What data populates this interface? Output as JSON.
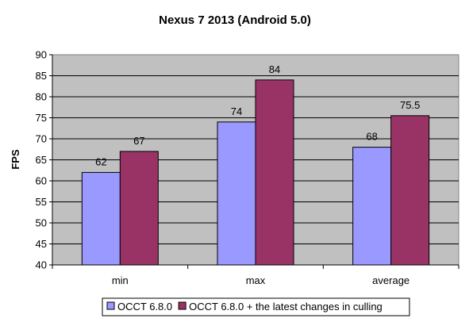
{
  "chart_data": {
    "type": "bar",
    "title": "Nexus 7 2013 (Android 5.0)",
    "xlabel": "",
    "ylabel": "FPS",
    "ylim": [
      40,
      90
    ],
    "yticks": [
      40,
      45,
      50,
      55,
      60,
      65,
      70,
      75,
      80,
      85,
      90
    ],
    "categories": [
      "min",
      "max",
      "average"
    ],
    "series": [
      {
        "name": "OCCT 6.8.0",
        "values": [
          62,
          74,
          68
        ],
        "value_labels": [
          "62",
          "74",
          "68"
        ],
        "color": "#9999ff"
      },
      {
        "name": "OCCT 6.8.0 + the latest changes in culling",
        "values": [
          67,
          84,
          75.5
        ],
        "value_labels": [
          "67",
          "84",
          "75.5"
        ],
        "color": "#993366"
      }
    ],
    "grid": true,
    "plot_background": "#c0c0c0",
    "legend_position": "bottom"
  }
}
